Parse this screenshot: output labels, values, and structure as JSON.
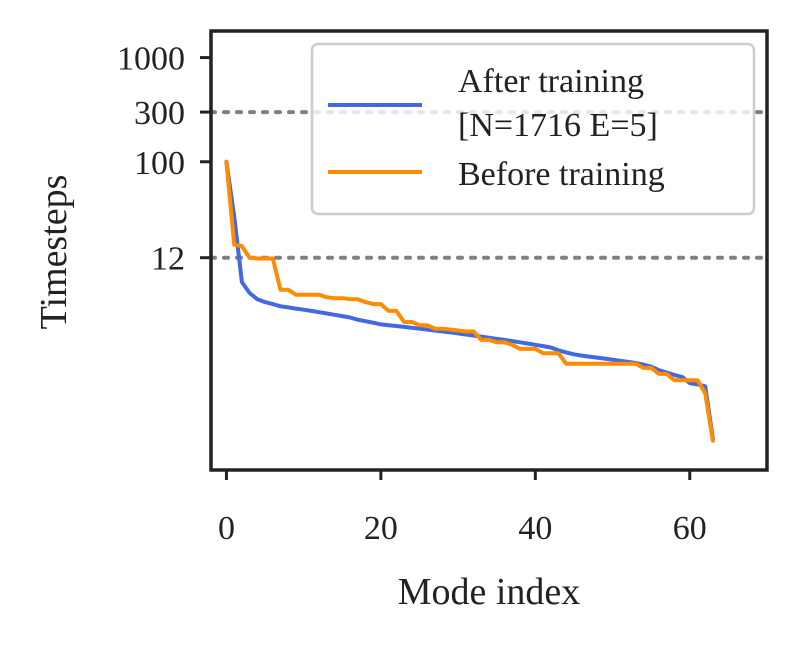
{
  "chart_data": {
    "type": "line",
    "xlabel": "Mode index",
    "ylabel": "Timesteps",
    "xlim": [
      -2,
      70
    ],
    "yscale": "log",
    "ylim": [
      0.11,
      1800
    ],
    "xticks": [
      0,
      20,
      40,
      60
    ],
    "yticks": [
      {
        "value": 1000,
        "label": "1000"
      },
      {
        "value": 300,
        "label": "300"
      },
      {
        "value": 100,
        "label": "100"
      },
      {
        "value": 12,
        "label": "12"
      }
    ],
    "reference_lines": [
      300,
      12
    ],
    "legend": {
      "location": "top-right",
      "entries": [
        {
          "series": "after",
          "lines": [
            "After training",
            "[N=1716 E=5]"
          ]
        },
        {
          "series": "before",
          "lines": [
            "Before training"
          ]
        }
      ]
    },
    "colors": {
      "after": "#4169e1",
      "before": "#ff8c00",
      "reference": "#808080",
      "frame": "#222222"
    },
    "series": [
      {
        "key": "after",
        "name": "After training [N=1716 E=5]",
        "x": [
          0,
          1,
          2,
          3,
          4,
          5,
          6,
          7,
          8,
          9,
          10,
          11,
          12,
          13,
          14,
          15,
          16,
          17,
          18,
          19,
          20,
          21,
          22,
          23,
          24,
          25,
          26,
          27,
          28,
          29,
          30,
          31,
          32,
          33,
          34,
          35,
          36,
          37,
          38,
          39,
          40,
          41,
          42,
          43,
          44,
          45,
          46,
          47,
          48,
          49,
          50,
          51,
          52,
          53,
          54,
          55,
          56,
          57,
          58,
          59,
          60,
          61,
          62,
          63
        ],
        "values": [
          100,
          30,
          7,
          5.5,
          4.8,
          4.5,
          4.3,
          4.1,
          4.0,
          3.9,
          3.8,
          3.7,
          3.6,
          3.5,
          3.4,
          3.3,
          3.2,
          3.05,
          2.95,
          2.85,
          2.75,
          2.7,
          2.65,
          2.6,
          2.55,
          2.5,
          2.45,
          2.4,
          2.35,
          2.3,
          2.25,
          2.2,
          2.15,
          2.1,
          2.05,
          2.0,
          1.95,
          1.9,
          1.85,
          1.8,
          1.75,
          1.7,
          1.65,
          1.55,
          1.48,
          1.42,
          1.38,
          1.35,
          1.32,
          1.29,
          1.26,
          1.23,
          1.2,
          1.17,
          1.13,
          1.08,
          1.0,
          0.95,
          0.9,
          0.86,
          0.75,
          0.73,
          0.7,
          0.22
        ]
      },
      {
        "key": "before",
        "name": "Before training",
        "x": [
          0,
          1,
          2,
          3,
          4,
          5,
          6,
          7,
          8,
          9,
          10,
          11,
          12,
          13,
          14,
          15,
          16,
          17,
          18,
          19,
          20,
          21,
          22,
          23,
          24,
          25,
          26,
          27,
          28,
          29,
          30,
          31,
          32,
          33,
          34,
          35,
          36,
          37,
          38,
          39,
          40,
          41,
          42,
          43,
          44,
          45,
          46,
          47,
          48,
          49,
          50,
          51,
          52,
          53,
          54,
          55,
          56,
          57,
          58,
          59,
          60,
          61,
          62,
          63
        ],
        "values": [
          100,
          16,
          15.5,
          12,
          11.8,
          11.8,
          11.8,
          5.9,
          5.9,
          5.3,
          5.3,
          5.3,
          5.3,
          5.0,
          4.9,
          4.9,
          4.8,
          4.8,
          4.5,
          4.3,
          4.3,
          3.7,
          3.7,
          2.9,
          2.9,
          2.7,
          2.7,
          2.5,
          2.5,
          2.45,
          2.4,
          2.35,
          2.35,
          1.95,
          1.95,
          1.85,
          1.85,
          1.75,
          1.6,
          1.6,
          1.6,
          1.45,
          1.45,
          1.45,
          1.15,
          1.15,
          1.15,
          1.15,
          1.15,
          1.15,
          1.15,
          1.15,
          1.15,
          1.15,
          1.05,
          1.05,
          0.92,
          0.92,
          0.8,
          0.8,
          0.8,
          0.8,
          0.6,
          0.21
        ]
      }
    ]
  }
}
